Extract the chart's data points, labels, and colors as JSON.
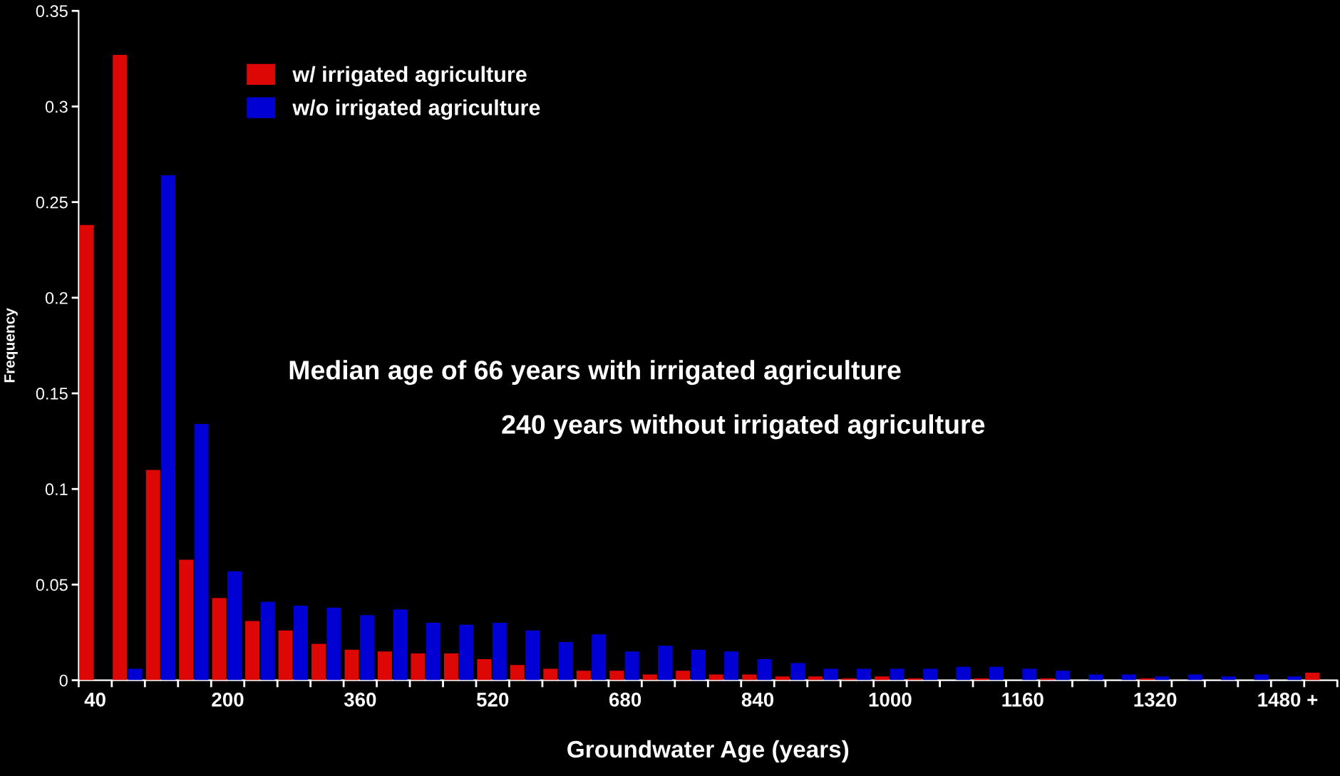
{
  "chart_data": {
    "type": "bar",
    "xlabel": "Groundwater Age (years)",
    "ylabel": "Frequency",
    "categories": [
      "40",
      null,
      null,
      null,
      "200",
      null,
      null,
      null,
      "360",
      null,
      null,
      null,
      "520",
      null,
      null,
      null,
      "680",
      null,
      null,
      null,
      "840",
      null,
      null,
      null,
      "1000",
      null,
      null,
      null,
      "1160",
      null,
      null,
      null,
      "1320",
      null,
      null,
      null,
      "1480 +",
      null
    ],
    "series": [
      {
        "name": "w/ irrigated agriculture",
        "color": "#dd0806",
        "values": [
          0.238,
          0.327,
          0.11,
          0.063,
          0.043,
          0.031,
          0.026,
          0.019,
          0.016,
          0.015,
          0.014,
          0.014,
          0.011,
          0.008,
          0.006,
          0.005,
          0.005,
          0.003,
          0.005,
          0.003,
          0.003,
          0.002,
          0.002,
          0.001,
          0.002,
          0.001,
          0,
          0.001,
          0,
          0.001,
          0,
          0,
          0.001,
          0,
          0,
          0,
          0,
          0.004
        ]
      },
      {
        "name": "w/o irrigated agriculture",
        "color": "#0000d4",
        "values": [
          0,
          0.006,
          0.264,
          0.134,
          0.057,
          0.041,
          0.039,
          0.038,
          0.034,
          0.037,
          0.03,
          0.029,
          0.03,
          0.026,
          0.02,
          0.024,
          0.015,
          0.018,
          0.016,
          0.015,
          0.011,
          0.009,
          0.006,
          0.006,
          0.006,
          0.006,
          0.007,
          0.007,
          0.006,
          0.005,
          0.003,
          0.003,
          0.002,
          0.003,
          0.002,
          0.003,
          0.002,
          0
        ]
      }
    ],
    "ylim": [
      0,
      0.35
    ],
    "yticks": [
      0,
      0.05,
      0.1,
      0.15,
      0.2,
      0.25,
      0.3,
      0.35
    ],
    "legend": "top left",
    "grid": false,
    "annotations": [
      "Median age of 66 years with irrigated agriculture",
      "240 years without irrigated agriculture"
    ]
  }
}
